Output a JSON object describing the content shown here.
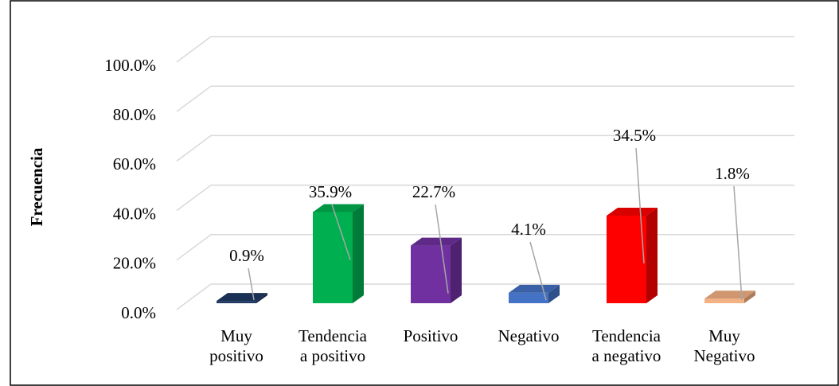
{
  "chart_data": {
    "type": "bar3d",
    "y_axis_label": "Frecuencia",
    "categories": [
      "Muy positivo",
      "Tendencia a positivo",
      "Positivo",
      "Negativo",
      "Tendencia a negativo",
      "Muy Negativo"
    ],
    "values": [
      0.9,
      35.9,
      22.7,
      4.1,
      34.5,
      1.8
    ],
    "value_labels": [
      "0.9%",
      "35.9%",
      "22.7%",
      "4.1%",
      "34.5%",
      "1.8%"
    ],
    "colors": [
      "#1f3864",
      "#00b050",
      "#7030a0",
      "#4472c4",
      "#ff0000",
      "#f4b183"
    ],
    "ylim": [
      0,
      100
    ],
    "yticks": [
      {
        "value": 0,
        "label": "0.0%"
      },
      {
        "value": 20,
        "label": "20.0%"
      },
      {
        "value": 40,
        "label": "40.0%"
      },
      {
        "value": 60,
        "label": "60.0%"
      },
      {
        "value": 80,
        "label": "80.0%"
      },
      {
        "value": 100,
        "label": "100.0%"
      }
    ],
    "grid": true
  }
}
